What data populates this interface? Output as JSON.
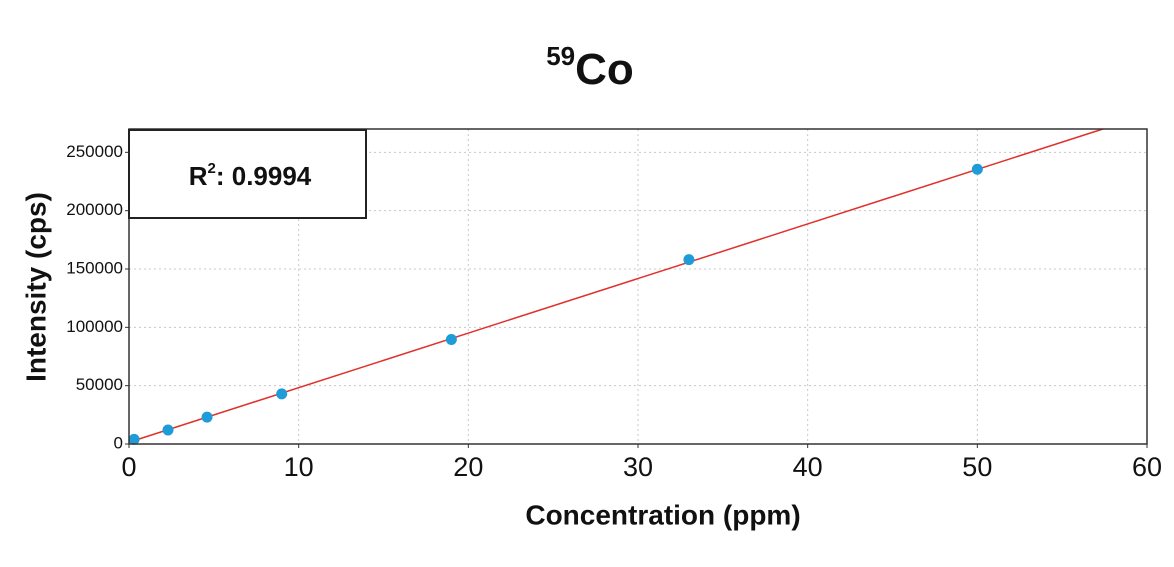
{
  "chart_data": {
    "type": "scatter",
    "title": {
      "superscript": "59",
      "text": "Co"
    },
    "annotation": {
      "text": "R",
      "superscript": "2",
      "suffix": ": 0.9994"
    },
    "x_label": "Concentration (ppm)",
    "y_label": "Intensity (cps)",
    "series": [
      {
        "color": "#1e9cd7",
        "x": [
          0.3,
          2.3,
          4.6,
          9,
          19,
          33,
          50
        ],
        "values": [
          4000,
          12000,
          23000,
          43000,
          89600,
          158000,
          235500
        ]
      }
    ],
    "fit": {
      "color": "#e0302a",
      "x": [
        0,
        57.4
      ],
      "values": [
        1500,
        270000
      ]
    },
    "xlim": [
      0,
      60
    ],
    "xticks": [
      0,
      10,
      20,
      30,
      40,
      50,
      60
    ],
    "ylim": [
      0,
      270000
    ],
    "yticks": [
      0,
      50000,
      100000,
      150000,
      200000,
      250000
    ],
    "grid": true
  }
}
